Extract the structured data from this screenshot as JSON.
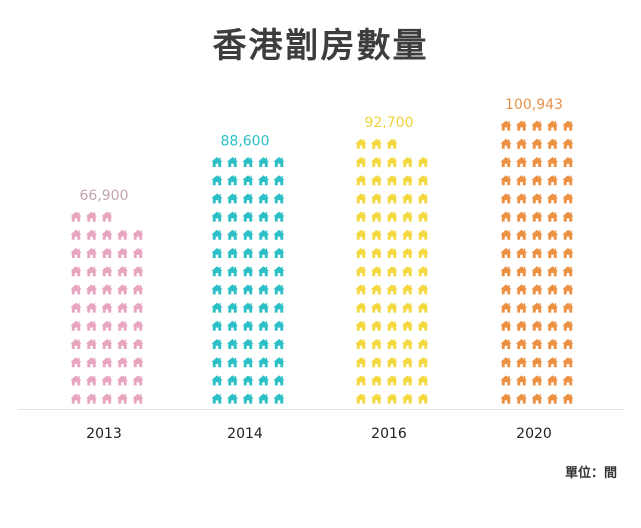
{
  "header": {
    "title": "香港劏房數量"
  },
  "unit_label": "單位：間",
  "chart_data": {
    "type": "bar",
    "title": "香港劏房數量",
    "categories": [
      "2013",
      "2014",
      "2016",
      "2020"
    ],
    "values": [
      66900,
      88600,
      92700,
      100943
    ],
    "value_labels": [
      "66,900",
      "88,600",
      "92,700",
      "100,943"
    ],
    "colors": [
      "#e7a5bf",
      "#2cc0c6",
      "#f4d83f",
      "#ec9042"
    ],
    "label_colors": [
      "#c2a3b3",
      "#2cc0c6",
      "#f0d43a",
      "#e8914a"
    ],
    "icon": "house-icon",
    "ylim": [
      0,
      110000
    ],
    "grid": false,
    "legend": "none"
  }
}
